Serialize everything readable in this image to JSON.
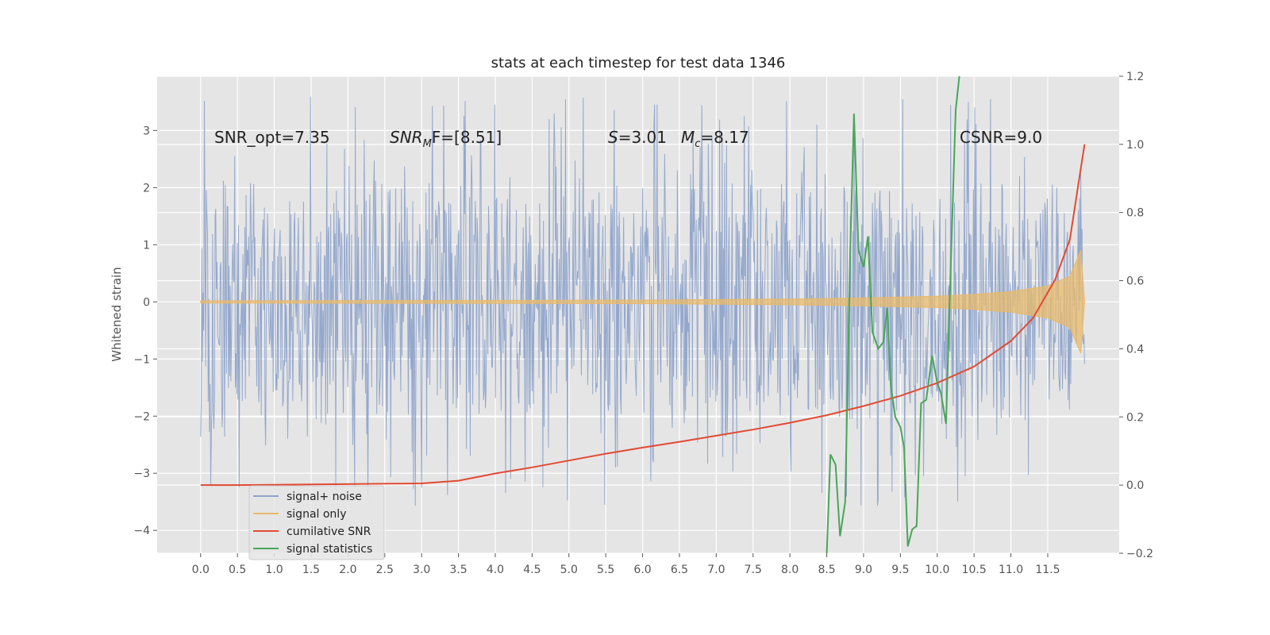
{
  "chart_data": {
    "type": "line",
    "title": "stats at each timestep for test data 1346",
    "xlabel": "",
    "ylabel": "Whitened strain",
    "y2label": "",
    "xlim": [
      -0.59,
      12.47
    ],
    "ylim": [
      -4.4,
      3.95
    ],
    "y2lim": [
      -0.2,
      1.2
    ],
    "grid": true,
    "x_ticks": [
      0.0,
      0.5,
      1.0,
      1.5,
      2.0,
      2.5,
      3.0,
      3.5,
      4.0,
      4.5,
      5.0,
      5.5,
      6.0,
      6.5,
      7.0,
      7.5,
      8.0,
      8.5,
      9.0,
      9.5,
      10.0,
      10.5,
      11.0,
      11.5
    ],
    "x_tick_labels": [
      "0.0",
      "0.5",
      "1.0",
      "1.5",
      "2.0",
      "2.5",
      "3.0",
      "3.5",
      "4.0",
      "4.5",
      "5.0",
      "5.5",
      "6.0",
      "6.5",
      "7.0",
      "7.5",
      "8.0",
      "8.5",
      "9.0",
      "9.5",
      "10.0",
      "10.5",
      "11.0",
      "11.5"
    ],
    "y_ticks": [
      3,
      2,
      1,
      0,
      -1,
      -2,
      -3,
      -4
    ],
    "y_tick_labels": [
      "3",
      "2",
      "1",
      "0",
      "−1",
      "−2",
      "−3",
      "−4"
    ],
    "y2_ticks": [
      1.2,
      1.0,
      0.8,
      0.6,
      0.4,
      0.2,
      0.0,
      -0.2
    ],
    "y2_tick_labels": [
      "1.2",
      "1.0",
      "0.8",
      "0.6",
      "0.4",
      "0.2",
      "0.0",
      "−0.2"
    ],
    "annotations": {
      "snr_opt": "SNR_opt=7.35",
      "snr_mf_sym": "SNR",
      "snr_mf_sub": "M",
      "snr_mf_rest": "F=[8.51]",
      "s_sym": "S",
      "s_val": "=3.01",
      "mc_sym": "M",
      "mc_sub": "c",
      "mc_val": "=8.17",
      "csnr": "CSNR=9.0"
    },
    "legend": {
      "placement": "lower-left",
      "entries": [
        "signal+ noise",
        "signal only",
        "cumilative SNR",
        "signal statistics"
      ]
    },
    "colors": {
      "noise": "#8fa4cb",
      "signal": "#e8b96a",
      "snr": "#e24a33",
      "stats": "#4aa55a",
      "axes_bg": "#e5e5e5",
      "grid": "#ffffff"
    },
    "series": [
      {
        "name": "signal+ noise",
        "axis": "left",
        "kind": "noise-envelope",
        "x_range": [
          0.0,
          12.0
        ],
        "typical_range": [
          -2.2,
          2.4
        ],
        "extreme_range": [
          -3.6,
          3.6
        ]
      },
      {
        "name": "signal only",
        "axis": "left",
        "kind": "chirp-envelope",
        "x": [
          0.0,
          6.0,
          8.0,
          9.0,
          10.0,
          10.5,
          11.0,
          11.5,
          11.8,
          11.95,
          12.0
        ],
        "amplitude": [
          0.02,
          0.03,
          0.05,
          0.07,
          0.1,
          0.13,
          0.18,
          0.28,
          0.45,
          0.9,
          0.0
        ]
      },
      {
        "name": "cumilative SNR",
        "axis": "right",
        "x": [
          0.0,
          0.5,
          1.0,
          1.5,
          2.0,
          2.5,
          3.0,
          3.5,
          4.0,
          4.5,
          5.0,
          5.5,
          6.0,
          6.5,
          7.0,
          7.5,
          8.0,
          8.5,
          9.0,
          9.5,
          10.0,
          10.5,
          11.0,
          11.3,
          11.6,
          11.8,
          11.95,
          12.0
        ],
        "y": [
          0.0,
          0.0,
          0.001,
          0.002,
          0.003,
          0.004,
          0.005,
          0.013,
          0.034,
          0.052,
          0.072,
          0.092,
          0.11,
          0.127,
          0.145,
          0.163,
          0.183,
          0.205,
          0.232,
          0.262,
          0.3,
          0.348,
          0.423,
          0.49,
          0.603,
          0.72,
          0.93,
          1.0
        ]
      },
      {
        "name": "signal statistics",
        "axis": "right",
        "x": [
          8.5,
          8.55,
          8.62,
          8.68,
          8.75,
          8.82,
          8.87,
          8.93,
          9.0,
          9.06,
          9.12,
          9.2,
          9.27,
          9.32,
          9.37,
          9.43,
          9.5,
          9.55,
          9.6,
          9.66,
          9.72,
          9.78,
          9.85,
          9.93,
          10.0,
          10.05,
          10.12,
          10.18,
          10.25,
          10.3
        ],
        "y": [
          -0.2,
          0.09,
          0.06,
          -0.15,
          -0.05,
          0.7,
          1.09,
          0.69,
          0.64,
          0.73,
          0.45,
          0.4,
          0.42,
          0.52,
          0.29,
          0.2,
          0.17,
          0.11,
          -0.18,
          -0.13,
          -0.12,
          0.24,
          0.25,
          0.38,
          0.3,
          0.27,
          0.18,
          0.62,
          1.1,
          1.2
        ]
      }
    ]
  }
}
